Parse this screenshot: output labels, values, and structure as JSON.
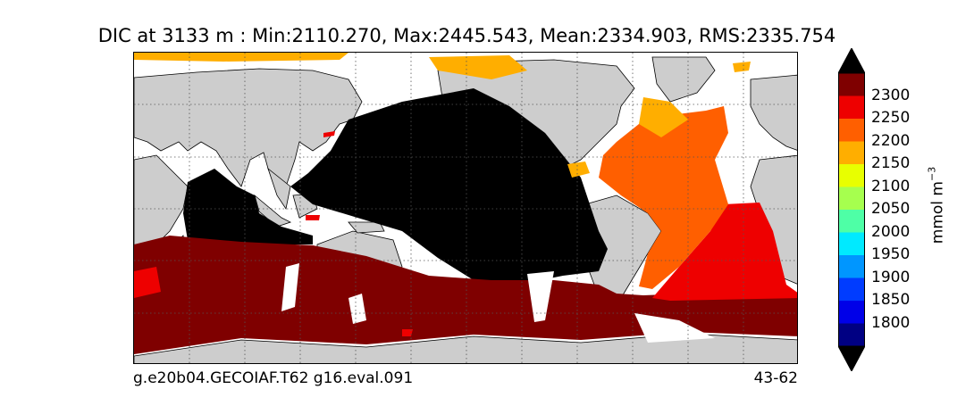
{
  "title": "DIC at 3133 m : Min:2110.270, Max:2445.543, Mean:2334.903, RMS:2335.754",
  "footer": {
    "left": "g.e20b04.GECOIAF.T62 g16.eval.091",
    "right": "43-62"
  },
  "colorbar": {
    "units": "mmol m",
    "units_exponent": "−3",
    "ticks": [
      "2300",
      "2250",
      "2200",
      "2150",
      "2100",
      "2050",
      "2000",
      "1950",
      "1900",
      "1850",
      "1800"
    ],
    "bins_top_to_bottom": [
      {
        "color": "#7f0000"
      },
      {
        "color": "#ee0000"
      },
      {
        "color": "#ff5f00"
      },
      {
        "color": "#ffae00"
      },
      {
        "color": "#e8ff00"
      },
      {
        "color": "#a6ff4e"
      },
      {
        "color": "#4effa6"
      },
      {
        "color": "#00eaff"
      },
      {
        "color": "#0096ff"
      },
      {
        "color": "#003cff"
      },
      {
        "color": "#0000e8"
      },
      {
        "color": "#000083"
      }
    ],
    "over_color": "#000000",
    "under_color": "#000000"
  },
  "map_colors": {
    "land": "#cdcdcd",
    "missing": "#ffffff",
    "above_max": "#000000",
    "bin_2300": "#7f0000",
    "bin_2250": "#ee0000",
    "bin_2200": "#ff5f00",
    "bin_2150": "#ffae00"
  }
}
